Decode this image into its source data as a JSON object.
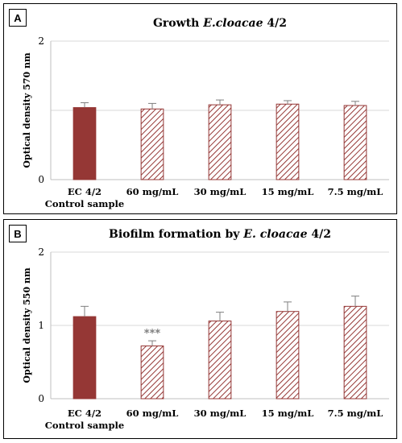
{
  "colors": {
    "control": "#953735",
    "hatch": "#953735",
    "grid": "#d9d9d9",
    "axis": "#bfbfbf",
    "error": "#7f7f7f"
  },
  "chart_data": [
    {
      "panel_label": "A",
      "type": "bar",
      "title": {
        "prefix": "Growth ",
        "organism": "E.cloacae",
        "suffix": "  4/2"
      },
      "ylabel": "Optical density  570 nm",
      "ylim": [
        0,
        2
      ],
      "yticks": [
        "0",
        "",
        "2"
      ],
      "yticks_values": [
        0,
        1,
        2
      ],
      "categories": [
        {
          "line1": "EC 4/2",
          "line2": "Control sample"
        },
        {
          "line1": "60 mg/mL",
          "line2": ""
        },
        {
          "line1": "30 mg/mL",
          "line2": ""
        },
        {
          "line1": "15 mg/mL",
          "line2": ""
        },
        {
          "line1": "7.5 mg/mL",
          "line2": ""
        }
      ],
      "values": [
        1.04,
        1.02,
        1.08,
        1.09,
        1.07
      ],
      "errors": [
        0.07,
        0.08,
        0.07,
        0.05,
        0.06
      ],
      "significance": [
        "",
        "",
        "",
        "",
        ""
      ],
      "fills": [
        "solid",
        "hatched",
        "hatched",
        "hatched",
        "hatched"
      ],
      "grid": true
    },
    {
      "panel_label": "B",
      "type": "bar",
      "title": {
        "prefix": "Biofilm formation by ",
        "organism": "E. cloacae",
        "suffix": " 4/2"
      },
      "ylabel": "Optical density  550 nm",
      "ylim": [
        0,
        2
      ],
      "yticks": [
        "0",
        "1",
        "2"
      ],
      "yticks_values": [
        0,
        1,
        2
      ],
      "categories": [
        {
          "line1": "EC 4/2",
          "line2": "Control sample"
        },
        {
          "line1": "60 mg/mL",
          "line2": ""
        },
        {
          "line1": "30 mg/mL",
          "line2": ""
        },
        {
          "line1": "15 mg/mL",
          "line2": ""
        },
        {
          "line1": "7.5 mg/mL",
          "line2": ""
        }
      ],
      "values": [
        1.12,
        0.72,
        1.06,
        1.19,
        1.26
      ],
      "errors": [
        0.14,
        0.07,
        0.12,
        0.13,
        0.14
      ],
      "significance": [
        "",
        "***",
        "",
        "",
        ""
      ],
      "fills": [
        "solid",
        "hatched",
        "hatched",
        "hatched",
        "hatched"
      ],
      "grid": true
    }
  ]
}
